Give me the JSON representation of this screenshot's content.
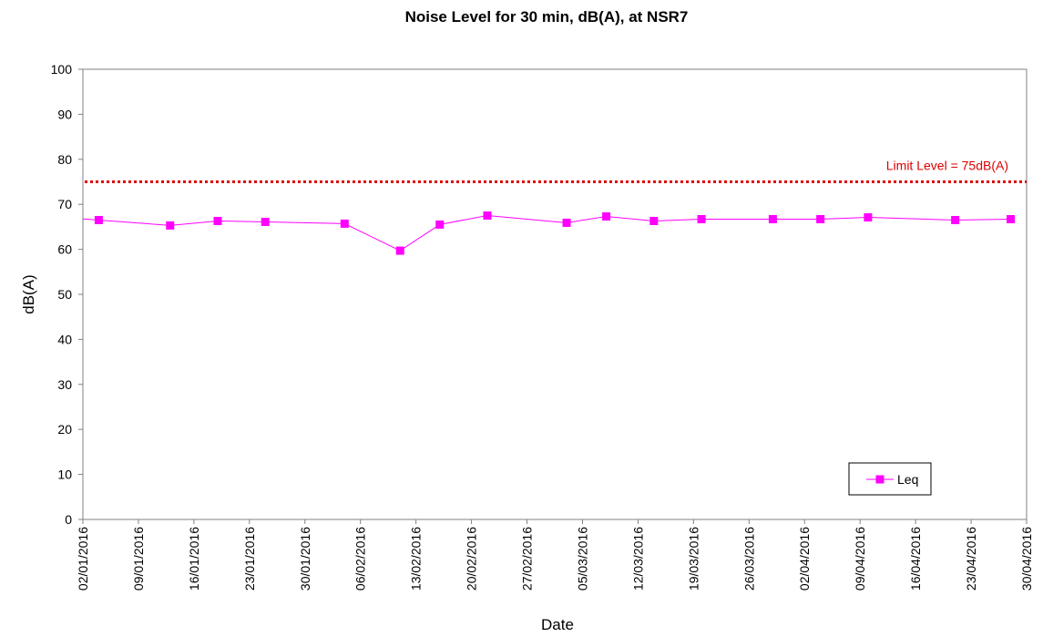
{
  "chart_data": {
    "type": "line",
    "title": "Noise Level for 30 min, dB(A), at NSR7",
    "xlabel": "Date",
    "ylabel": "dB(A)",
    "ylim": [
      0,
      100
    ],
    "yticks": [
      0,
      10,
      20,
      30,
      40,
      50,
      60,
      70,
      80,
      90,
      100
    ],
    "xlim": [
      "2016-01-02",
      "2016-04-30"
    ],
    "xtick_labels": [
      "02/01/2016",
      "09/01/2016",
      "16/01/2016",
      "23/01/2016",
      "30/01/2016",
      "06/02/2016",
      "13/02/2016",
      "20/02/2016",
      "27/02/2016",
      "05/03/2016",
      "12/03/2016",
      "19/03/2016",
      "26/03/2016",
      "02/04/2016",
      "09/04/2016",
      "16/04/2016",
      "23/04/2016",
      "30/04/2016"
    ],
    "grid": false,
    "legend_position": "bottom-right",
    "series": [
      {
        "name": "Leq",
        "color": "#ff00ff",
        "marker": "square",
        "points": [
          {
            "date": "2016-01-04",
            "value": 66.5
          },
          {
            "date": "2016-01-13",
            "value": 65.3
          },
          {
            "date": "2016-01-19",
            "value": 66.3
          },
          {
            "date": "2016-01-25",
            "value": 66.1
          },
          {
            "date": "2016-02-04",
            "value": 65.7
          },
          {
            "date": "2016-02-11",
            "value": 59.7
          },
          {
            "date": "2016-02-16",
            "value": 65.5
          },
          {
            "date": "2016-02-22",
            "value": 67.5
          },
          {
            "date": "2016-03-03",
            "value": 65.9
          },
          {
            "date": "2016-03-08",
            "value": 67.3
          },
          {
            "date": "2016-03-14",
            "value": 66.3
          },
          {
            "date": "2016-03-20",
            "value": 66.7
          },
          {
            "date": "2016-03-29",
            "value": 66.7
          },
          {
            "date": "2016-04-04",
            "value": 66.7
          },
          {
            "date": "2016-04-10",
            "value": 67.1
          },
          {
            "date": "2016-04-21",
            "value": 66.5
          },
          {
            "date": "2016-04-28",
            "value": 66.7
          }
        ]
      }
    ],
    "limit": {
      "value": 75,
      "label": "Limit Level = 75dB(A)",
      "color": "#dd0000",
      "style": "dotted"
    }
  }
}
